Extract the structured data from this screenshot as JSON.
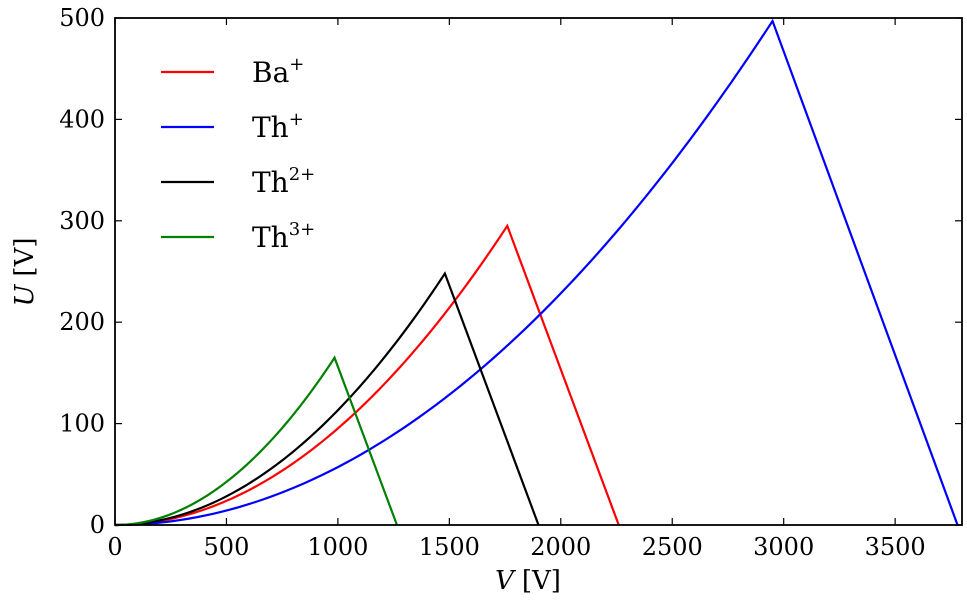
{
  "chart_data": {
    "type": "line",
    "xlabel_var": "V",
    "xlabel_unit": "[V]",
    "ylabel_var": "U",
    "ylabel_unit": "[V]",
    "xlim": [
      0,
      3800
    ],
    "ylim": [
      0,
      500
    ],
    "xticks": [
      0,
      500,
      1000,
      1500,
      2000,
      2500,
      3000,
      3500
    ],
    "yticks": [
      0,
      100,
      200,
      300,
      400,
      500
    ],
    "xtick_labels": [
      "0",
      "500",
      "1000",
      "1500",
      "2000",
      "2500",
      "3000",
      "3500"
    ],
    "ytick_labels": [
      "0",
      "100",
      "200",
      "300",
      "400",
      "500"
    ],
    "grid": false,
    "legend_position": "top-left",
    "series": [
      {
        "base": "Ba",
        "charge": "+",
        "color": "#ff0000",
        "peak_x": 1760,
        "peak_y": 295,
        "end_x": 2260
      },
      {
        "base": "Th",
        "charge": "+",
        "color": "#0000ff",
        "peak_x": 2950,
        "peak_y": 497,
        "end_x": 3780
      },
      {
        "base": "Th",
        "charge": "2+",
        "color": "#000000",
        "peak_x": 1480,
        "peak_y": 248,
        "end_x": 1900
      },
      {
        "base": "Th",
        "charge": "3+",
        "color": "#008000",
        "peak_x": 985,
        "peak_y": 165,
        "end_x": 1265
      }
    ]
  }
}
